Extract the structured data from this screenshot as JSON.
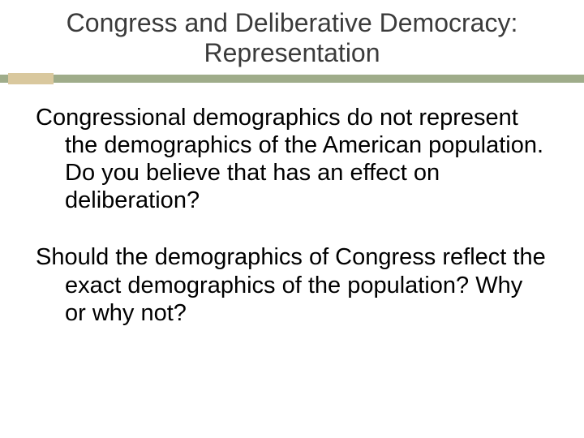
{
  "slide": {
    "title": "Congress and Deliberative Democracy: Representation",
    "paragraph1": "Congressional demographics do not represent the demographics of the American population.  Do you believe that has an effect on deliberation?",
    "paragraph2": "Should the demographics of Congress reflect the exact demographics of the population?  Why or why not?"
  },
  "style": {
    "background_color": "#ffffff",
    "title_color": "#3b3b3b",
    "body_color": "#000000",
    "accent_bar_color": "#9fac8a",
    "accent_block_color": "#d9c89e",
    "title_fontsize": 32,
    "body_fontsize": 29,
    "font_family": "Arial"
  }
}
